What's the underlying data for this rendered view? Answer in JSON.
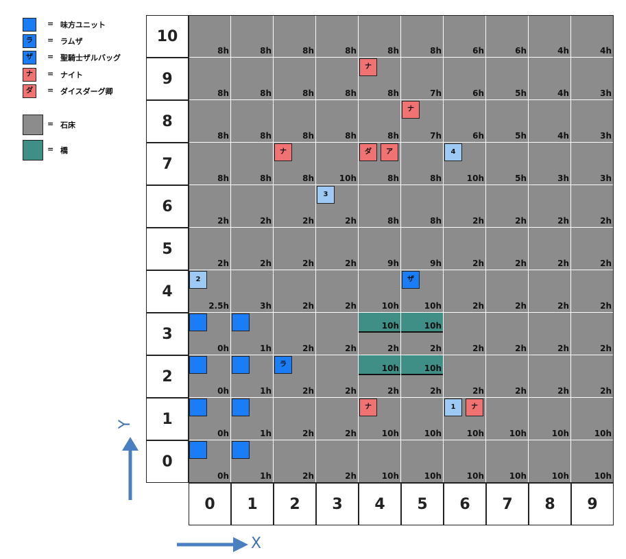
{
  "legend": {
    "items": [
      {
        "label": "味方ユニット",
        "color": "#1a7df5",
        "glyph": "",
        "eq": "="
      },
      {
        "label": "ラムザ",
        "color": "#1a7df5",
        "glyph": "ラ",
        "eq": "="
      },
      {
        "label": "聖騎士ザルバッグ",
        "color": "#1a7df5",
        "glyph": "ザ",
        "eq": "="
      },
      {
        "label": "ナイト",
        "color": "#f07272",
        "glyph": "ナ",
        "eq": "="
      },
      {
        "label": "ダイスダーグ卿",
        "color": "#f07272",
        "glyph": "ダ",
        "eq": "="
      }
    ],
    "terrain": [
      {
        "label": "石床",
        "color": "#8c8c8c",
        "eq": "="
      },
      {
        "label": "橋",
        "color": "#3f8f87",
        "eq": "="
      }
    ]
  },
  "board": {
    "columns": [
      "0",
      "1",
      "2",
      "3",
      "4",
      "5",
      "6",
      "7",
      "8",
      "9"
    ],
    "rows": [
      "10",
      "9",
      "8",
      "7",
      "6",
      "5",
      "4",
      "3",
      "2",
      "1",
      "0"
    ],
    "heights": [
      [
        "8h",
        "8h",
        "8h",
        "8h",
        "8h",
        "8h",
        "6h",
        "6h",
        "4h",
        "4h"
      ],
      [
        "8h",
        "8h",
        "8h",
        "8h",
        "8h",
        "7h",
        "6h",
        "5h",
        "4h",
        "3h"
      ],
      [
        "8h",
        "8h",
        "8h",
        "8h",
        "8h",
        "7h",
        "6h",
        "5h",
        "4h",
        "3h"
      ],
      [
        "8h",
        "8h",
        "8h",
        "10h",
        "8h",
        "8h",
        "10h",
        "5h",
        "3h",
        "3h"
      ],
      [
        "2h",
        "2h",
        "2h",
        "2h",
        "8h",
        "8h",
        "2h",
        "2h",
        "2h",
        "2h"
      ],
      [
        "2h",
        "2h",
        "2h",
        "2h",
        "9h",
        "9h",
        "2h",
        "2h",
        "2h",
        "2h"
      ],
      [
        "2.5h",
        "3h",
        "2h",
        "2h",
        "10h",
        "10h",
        "2h",
        "2h",
        "2h",
        "2h"
      ],
      [
        "0h",
        "1h",
        "2h",
        "2h",
        "2h",
        "2h",
        "2h",
        "2h",
        "2h",
        "2h"
      ],
      [
        "0h",
        "1h",
        "2h",
        "2h",
        "2h",
        "2h",
        "2h",
        "2h",
        "2h",
        "2h"
      ],
      [
        "0h",
        "1h",
        "2h",
        "2h",
        "10h",
        "10h",
        "10h",
        "10h",
        "10h",
        "10h"
      ],
      [
        "0h",
        "1h",
        "2h",
        "2h",
        "10h",
        "10h",
        "10h",
        "10h",
        "10h",
        "10h"
      ]
    ],
    "bridges": [
      {
        "row": "3",
        "col": "4",
        "height": "10h"
      },
      {
        "row": "3",
        "col": "5",
        "height": "10h"
      },
      {
        "row": "2",
        "col": "4",
        "height": "10h"
      },
      {
        "row": "2",
        "col": "5",
        "height": "10h"
      }
    ],
    "units": [
      {
        "row": "9",
        "col": "4",
        "slot": 0,
        "glyph": "ナ",
        "color": "#f07272"
      },
      {
        "row": "8",
        "col": "5",
        "slot": 0,
        "glyph": "ナ",
        "color": "#f07272"
      },
      {
        "row": "7",
        "col": "2",
        "slot": 0,
        "glyph": "ナ",
        "color": "#f07272"
      },
      {
        "row": "7",
        "col": "4",
        "slot": 0,
        "glyph": "ダ",
        "color": "#f07272"
      },
      {
        "row": "7",
        "col": "4",
        "slot": 1,
        "glyph": "ア",
        "color": "#f07272"
      },
      {
        "row": "7",
        "col": "6",
        "slot": 0,
        "glyph": "4",
        "color": "#9ccaf4"
      },
      {
        "row": "6",
        "col": "3",
        "slot": 0,
        "glyph": "3",
        "color": "#9ccaf4"
      },
      {
        "row": "4",
        "col": "0",
        "slot": 0,
        "glyph": "2",
        "color": "#9ccaf4"
      },
      {
        "row": "4",
        "col": "5",
        "slot": 0,
        "glyph": "ザ",
        "color": "#1a7df5"
      },
      {
        "row": "3",
        "col": "0",
        "slot": 0,
        "glyph": "",
        "color": "#1a7df5"
      },
      {
        "row": "3",
        "col": "1",
        "slot": 0,
        "glyph": "",
        "color": "#1a7df5"
      },
      {
        "row": "2",
        "col": "0",
        "slot": 0,
        "glyph": "",
        "color": "#1a7df5"
      },
      {
        "row": "2",
        "col": "1",
        "slot": 0,
        "glyph": "",
        "color": "#1a7df5"
      },
      {
        "row": "2",
        "col": "2",
        "slot": 0,
        "glyph": "ラ",
        "color": "#1a7df5"
      },
      {
        "row": "1",
        "col": "0",
        "slot": 0,
        "glyph": "",
        "color": "#1a7df5"
      },
      {
        "row": "1",
        "col": "1",
        "slot": 0,
        "glyph": "",
        "color": "#1a7df5"
      },
      {
        "row": "1",
        "col": "4",
        "slot": 0,
        "glyph": "ナ",
        "color": "#f07272"
      },
      {
        "row": "1",
        "col": "6",
        "slot": 0,
        "glyph": "1",
        "color": "#9ccaf4"
      },
      {
        "row": "1",
        "col": "6",
        "slot": 1,
        "glyph": "ナ",
        "color": "#f07272"
      },
      {
        "row": "0",
        "col": "0",
        "slot": 0,
        "glyph": "",
        "color": "#1a7df5"
      },
      {
        "row": "0",
        "col": "1",
        "slot": 0,
        "glyph": "",
        "color": "#1a7df5"
      }
    ]
  },
  "axes": {
    "x_label": "X",
    "y_label": "Y",
    "arrow_color": "#4a7fc1"
  }
}
